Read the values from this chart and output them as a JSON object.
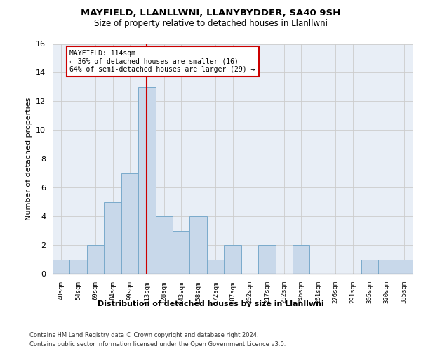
{
  "title": "MAYFIELD, LLANLLWNI, LLANYBYDDER, SA40 9SH",
  "subtitle": "Size of property relative to detached houses in Llanllwni",
  "xlabel": "Distribution of detached houses by size in Llanllwni",
  "ylabel": "Number of detached properties",
  "bar_color": "#c8d8ea",
  "bar_edge_color": "#7aaacb",
  "grid_color": "#cccccc",
  "background_color": "#e8eef6",
  "annotation_text_line1": "MAYFIELD: 114sqm",
  "annotation_text_line2": "← 36% of detached houses are smaller (16)",
  "annotation_text_line3": "64% of semi-detached houses are larger (29) →",
  "annotation_box_color": "#ffffff",
  "annotation_border_color": "#cc0000",
  "mayfield_line_color": "#cc0000",
  "ylim": [
    0,
    16
  ],
  "yticks": [
    0,
    2,
    4,
    6,
    8,
    10,
    12,
    14,
    16
  ],
  "footer_line1": "Contains HM Land Registry data © Crown copyright and database right 2024.",
  "footer_line2": "Contains public sector information licensed under the Open Government Licence v3.0.",
  "all_labels": [
    "40sqm",
    "54sqm",
    "69sqm",
    "84sqm",
    "99sqm",
    "113sqm",
    "128sqm",
    "143sqm",
    "158sqm",
    "172sqm",
    "187sqm",
    "202sqm",
    "217sqm",
    "232sqm",
    "246sqm",
    "261sqm",
    "276sqm",
    "291sqm",
    "305sqm",
    "320sqm",
    "335sqm"
  ],
  "all_values": [
    1,
    1,
    2,
    5,
    7,
    13,
    4,
    3,
    4,
    1,
    2,
    0,
    2,
    0,
    2,
    0,
    0,
    0,
    1,
    1,
    1
  ],
  "mayfield_bar_idx": 5
}
